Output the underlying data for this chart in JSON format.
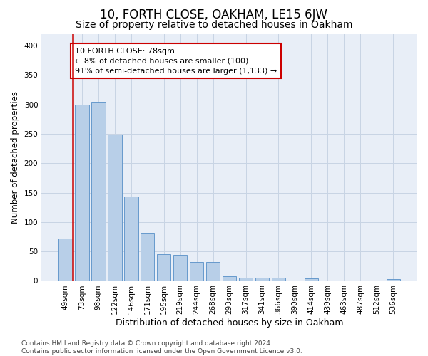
{
  "title": "10, FORTH CLOSE, OAKHAM, LE15 6JW",
  "subtitle": "Size of property relative to detached houses in Oakham",
  "xlabel": "Distribution of detached houses by size in Oakham",
  "ylabel": "Number of detached properties",
  "categories": [
    "49sqm",
    "73sqm",
    "98sqm",
    "122sqm",
    "146sqm",
    "171sqm",
    "195sqm",
    "219sqm",
    "244sqm",
    "268sqm",
    "293sqm",
    "317sqm",
    "341sqm",
    "366sqm",
    "390sqm",
    "414sqm",
    "439sqm",
    "463sqm",
    "487sqm",
    "512sqm",
    "536sqm"
  ],
  "values": [
    72,
    299,
    304,
    249,
    144,
    82,
    45,
    44,
    32,
    32,
    8,
    6,
    6,
    6,
    0,
    4,
    0,
    0,
    0,
    0,
    3
  ],
  "bar_color": "#b8cfe8",
  "bar_edge_color": "#6699cc",
  "highlight_line_color": "#cc0000",
  "annotation_box_text": "10 FORTH CLOSE: 78sqm\n← 8% of detached houses are smaller (100)\n91% of semi-detached houses are larger (1,133) →",
  "annotation_box_color": "#cc0000",
  "ylim": [
    0,
    420
  ],
  "yticks": [
    0,
    50,
    100,
    150,
    200,
    250,
    300,
    350,
    400
  ],
  "grid_color": "#c8d4e4",
  "bg_color": "#e8eef7",
  "footer_text": "Contains HM Land Registry data © Crown copyright and database right 2024.\nContains public sector information licensed under the Open Government Licence v3.0.",
  "title_fontsize": 12,
  "subtitle_fontsize": 10,
  "xlabel_fontsize": 9,
  "ylabel_fontsize": 8.5,
  "tick_fontsize": 7.5,
  "annotation_fontsize": 8,
  "footer_fontsize": 6.5
}
